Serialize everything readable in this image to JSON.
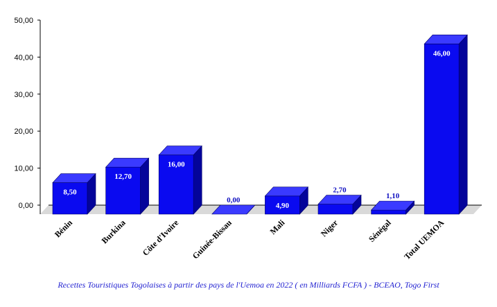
{
  "chart_data": {
    "type": "bar",
    "categories": [
      "Bénin",
      "Burkina",
      "Côte d'Ivoire",
      "Guinée-Bissau",
      "Mali",
      "Niger",
      "Sénégal",
      "Total UEMOA"
    ],
    "values": [
      8.5,
      12.7,
      16.0,
      0.0,
      4.9,
      2.7,
      1.1,
      46.0
    ],
    "data_labels": [
      "8,50",
      "12,70",
      "16,00",
      "0,00",
      "4,90",
      "2,70",
      "1,10",
      "46,00"
    ],
    "y_ticks": [
      "0,00",
      "10,00",
      "20,00",
      "30,00",
      "40,00",
      "50,00"
    ],
    "ylim": [
      0,
      50
    ],
    "grid": false,
    "legend": "none",
    "caption": "Recettes Touristiques Togolaises à partir des pays de l'Uemoa en 2022 ( en Milliards FCFA ) - BCEAO, Togo First",
    "colors": {
      "bar_front": "#0a0af0",
      "bar_top": "#3a3aff",
      "bar_side": "#04049a",
      "floor": "#d9d9d9",
      "caption": "#1f1fd0"
    }
  }
}
